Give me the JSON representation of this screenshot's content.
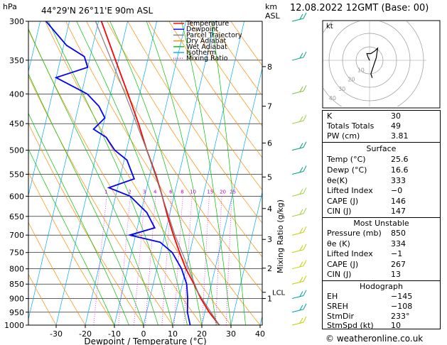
{
  "header": {
    "pressure_unit": "hPa",
    "location": "44°29'N 26°11'E 90m ASL",
    "height_unit_1": "km",
    "height_unit_2": "ASL",
    "datetime": "12.08.2022 12GMT (Base: 00)"
  },
  "legend": {
    "items": [
      {
        "label": "Temperature",
        "color": "#ff0000",
        "style": "solid"
      },
      {
        "label": "Dewpoint",
        "color": "#0000ff",
        "style": "solid"
      },
      {
        "label": "Parcel Trajectory",
        "color": "#808080",
        "style": "solid"
      },
      {
        "label": "Dry Adiabat",
        "color": "#ff8c00",
        "style": "solid"
      },
      {
        "label": "Wet Adiabat",
        "color": "#00c000",
        "style": "solid"
      },
      {
        "label": "Isotherm",
        "color": "#00aaff",
        "style": "solid"
      },
      {
        "label": "Mixing Ratio",
        "color": "#ff00ff",
        "style": "dotted"
      }
    ]
  },
  "chart_data": {
    "type": "line",
    "title": "",
    "xlabel": "Dewpoint / Temperature (°C)",
    "ylabel": "hPa",
    "y2label": "Mixing Ratio (g/kg)",
    "xlim": [
      -40,
      40
    ],
    "ylim": [
      1000,
      300
    ],
    "y_scale": "log",
    "skew": true,
    "x_ticks": [
      -30,
      -20,
      -10,
      0,
      10,
      20,
      30,
      40
    ],
    "pressure_ticks": [
      300,
      350,
      400,
      450,
      500,
      550,
      600,
      650,
      700,
      750,
      800,
      850,
      900,
      950,
      1000
    ],
    "km_ticks": [
      {
        "label": "8",
        "p": 359
      },
      {
        "label": "7",
        "p": 420
      },
      {
        "label": "6",
        "p": 486
      },
      {
        "label": "5",
        "p": 556
      },
      {
        "label": "4",
        "p": 630
      },
      {
        "label": "3",
        "p": 712
      },
      {
        "label": "2",
        "p": 798
      },
      {
        "label": "1",
        "p": 900
      }
    ],
    "lcl": {
      "label": "LCL",
      "p": 878
    },
    "mixing_ratio_labels": [
      "1",
      "2",
      "3",
      "4",
      "6",
      "8",
      "10",
      "15",
      "20",
      "25"
    ],
    "series": [
      {
        "name": "Temperature",
        "color": "#ff0000",
        "points": [
          [
            1000,
            26
          ],
          [
            950,
            21.5
          ],
          [
            900,
            17.5
          ],
          [
            850,
            14
          ],
          [
            800,
            10
          ],
          [
            750,
            6.5
          ],
          [
            700,
            3
          ],
          [
            650,
            -0.5
          ],
          [
            600,
            -4
          ],
          [
            550,
            -8
          ],
          [
            500,
            -13
          ],
          [
            450,
            -18
          ],
          [
            400,
            -24
          ],
          [
            350,
            -31
          ],
          [
            300,
            -39
          ]
        ]
      },
      {
        "name": "Dewpoint",
        "color": "#0000ff",
        "points": [
          [
            1000,
            16
          ],
          [
            950,
            14
          ],
          [
            900,
            13
          ],
          [
            850,
            11.5
          ],
          [
            800,
            8.5
          ],
          [
            750,
            4
          ],
          [
            720,
            -1
          ],
          [
            700,
            -12
          ],
          [
            680,
            -4
          ],
          [
            640,
            -8
          ],
          [
            600,
            -15
          ],
          [
            580,
            -23
          ],
          [
            560,
            -15
          ],
          [
            540,
            -17
          ],
          [
            520,
            -19
          ],
          [
            500,
            -24
          ],
          [
            475,
            -28
          ],
          [
            460,
            -33
          ],
          [
            440,
            -30
          ],
          [
            420,
            -33
          ],
          [
            400,
            -38
          ],
          [
            375,
            -50
          ],
          [
            360,
            -40
          ],
          [
            345,
            -42
          ],
          [
            330,
            -49
          ],
          [
            300,
            -58
          ]
        ]
      },
      {
        "name": "Parcel Trajectory",
        "color": "#808080",
        "points": [
          [
            1000,
            26
          ],
          [
            878,
            16
          ],
          [
            800,
            11
          ],
          [
            700,
            3.5
          ],
          [
            600,
            -4
          ],
          [
            500,
            -13
          ],
          [
            400,
            -25
          ],
          [
            300,
            -41
          ]
        ]
      }
    ],
    "dry_adiabat_thetas": [
      -30,
      -20,
      -10,
      0,
      10,
      20,
      30,
      40,
      50,
      60,
      70,
      80,
      90,
      100,
      110,
      120
    ],
    "wet_adiabat_temps": [
      -10,
      -5,
      0,
      5,
      10,
      15,
      20,
      25,
      30,
      35
    ],
    "isotherms": [
      -110,
      -100,
      -90,
      -80,
      -70,
      -60,
      -50,
      -40,
      -30,
      -20,
      -10,
      0,
      10,
      20,
      30,
      40
    ],
    "mixing_ratios": [
      1,
      2,
      3,
      4,
      6,
      8,
      10,
      15,
      20,
      25
    ],
    "wind_barbs": [
      {
        "p": 300,
        "color": "#00a080"
      },
      {
        "p": 350,
        "color": "#00a080"
      },
      {
        "p": 400,
        "color": "#80c040"
      },
      {
        "p": 450,
        "color": "#a0d040"
      },
      {
        "p": 500,
        "color": "#00a080"
      },
      {
        "p": 550,
        "color": "#00a080"
      },
      {
        "p": 600,
        "color": "#a0d040"
      },
      {
        "p": 650,
        "color": "#a0d040"
      },
      {
        "p": 700,
        "color": "#c0d000"
      },
      {
        "p": 750,
        "color": "#c0d000"
      },
      {
        "p": 800,
        "color": "#c0d000"
      },
      {
        "p": 850,
        "color": "#c0d000"
      },
      {
        "p": 900,
        "color": "#00a0a0"
      },
      {
        "p": 950,
        "color": "#00a0a0"
      },
      {
        "p": 1000,
        "color": "#c0d000"
      }
    ]
  },
  "hodograph": {
    "label": "kt",
    "ring_labels": [
      "10",
      "20",
      "30",
      "40"
    ],
    "points": [
      [
        0,
        0
      ],
      [
        -1,
        -2
      ],
      [
        -2,
        -5
      ],
      [
        1,
        -5
      ],
      [
        4,
        -7
      ],
      [
        6,
        -9
      ],
      [
        5,
        -2
      ],
      [
        3,
        4
      ],
      [
        1,
        10
      ],
      [
        2,
        13
      ]
    ]
  },
  "indices": {
    "rows": [
      {
        "label": "K",
        "value": "30"
      },
      {
        "label": "Totals Totals",
        "value": "49"
      },
      {
        "label": "PW (cm)",
        "value": "3.81"
      }
    ]
  },
  "surface": {
    "title": "Surface",
    "rows": [
      {
        "label": "Temp (°C)",
        "value": "25.6"
      },
      {
        "label": "Dewp (°C)",
        "value": "16.6"
      },
      {
        "label": "θe(K)",
        "value": "333"
      },
      {
        "label": "Lifted Index",
        "value": "−0"
      },
      {
        "label": "CAPE (J)",
        "value": "146"
      },
      {
        "label": "CIN (J)",
        "value": "147"
      }
    ]
  },
  "most_unstable": {
    "title": "Most Unstable",
    "rows": [
      {
        "label": "Pressure (mb)",
        "value": "850"
      },
      {
        "label": "θe (K)",
        "value": "334"
      },
      {
        "label": "Lifted Index",
        "value": "−1"
      },
      {
        "label": "CAPE (J)",
        "value": "267"
      },
      {
        "label": "CIN (J)",
        "value": "13"
      }
    ]
  },
  "hodo_panel": {
    "title": "Hodograph",
    "rows": [
      {
        "label": "EH",
        "value": "−145"
      },
      {
        "label": "SREH",
        "value": "−108"
      },
      {
        "label": "StmDir",
        "value": "233°"
      },
      {
        "label": "StmSpd (kt)",
        "value": "10"
      }
    ]
  },
  "footer": {
    "copyright": "© weatheronline.co.uk"
  }
}
